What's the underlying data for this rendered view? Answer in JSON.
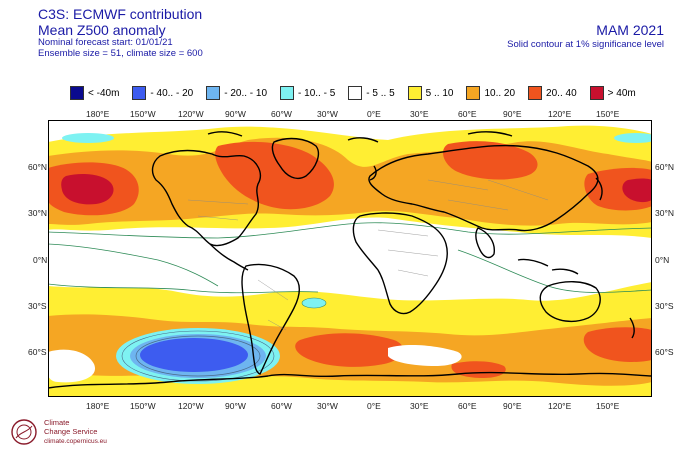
{
  "header": {
    "line1": "C3S: ECMWF contribution",
    "line2": "Mean Z500 anomaly",
    "line3": "Nominal forecast start: 01/01/21",
    "line4": "Ensemble size = 51, climate size = 600",
    "season": "MAM 2021",
    "note": "Solid contour at 1% significance level"
  },
  "legend": [
    {
      "label": "< -40m",
      "color": "#0a0a8f"
    },
    {
      "label": "- 40.. - 20",
      "color": "#3d5cf0"
    },
    {
      "label": "- 20.. - 10",
      "color": "#6eb5f0"
    },
    {
      "label": "- 10.. - 5",
      "color": "#7ef2f2"
    },
    {
      "label": "- 5 .. 5",
      "color": "#ffffff"
    },
    {
      "label": "5 .. 10",
      "color": "#ffee33"
    },
    {
      "label": "10.. 20",
      "color": "#f5a623"
    },
    {
      "label": "20.. 40",
      "color": "#f0541e"
    },
    {
      "label": "> 40m",
      "color": "#c8102e"
    }
  ],
  "axes": {
    "top_lon": [
      "180°E",
      "150°W",
      "120°W",
      "90°W",
      "60°W",
      "30°W",
      "0°E",
      "30°E",
      "60°E",
      "90°E",
      "120°E",
      "150°E"
    ],
    "bottom_lon": [
      "180°E",
      "150°W",
      "120°W",
      "90°W",
      "60°W",
      "30°W",
      "0°E",
      "30°E",
      "60°E",
      "90°E",
      "120°E",
      "150°E"
    ],
    "lat": [
      "60°N",
      "30°N",
      "0°N",
      "30°S",
      "60°S"
    ]
  },
  "footer": {
    "brand_line1": "Climate",
    "brand_line2": "Change Service",
    "url": "climate.copernicus.eu"
  },
  "map": {
    "region": "global",
    "projection": "equirectangular",
    "variable": "500 hPa geopotential height anomaly"
  }
}
